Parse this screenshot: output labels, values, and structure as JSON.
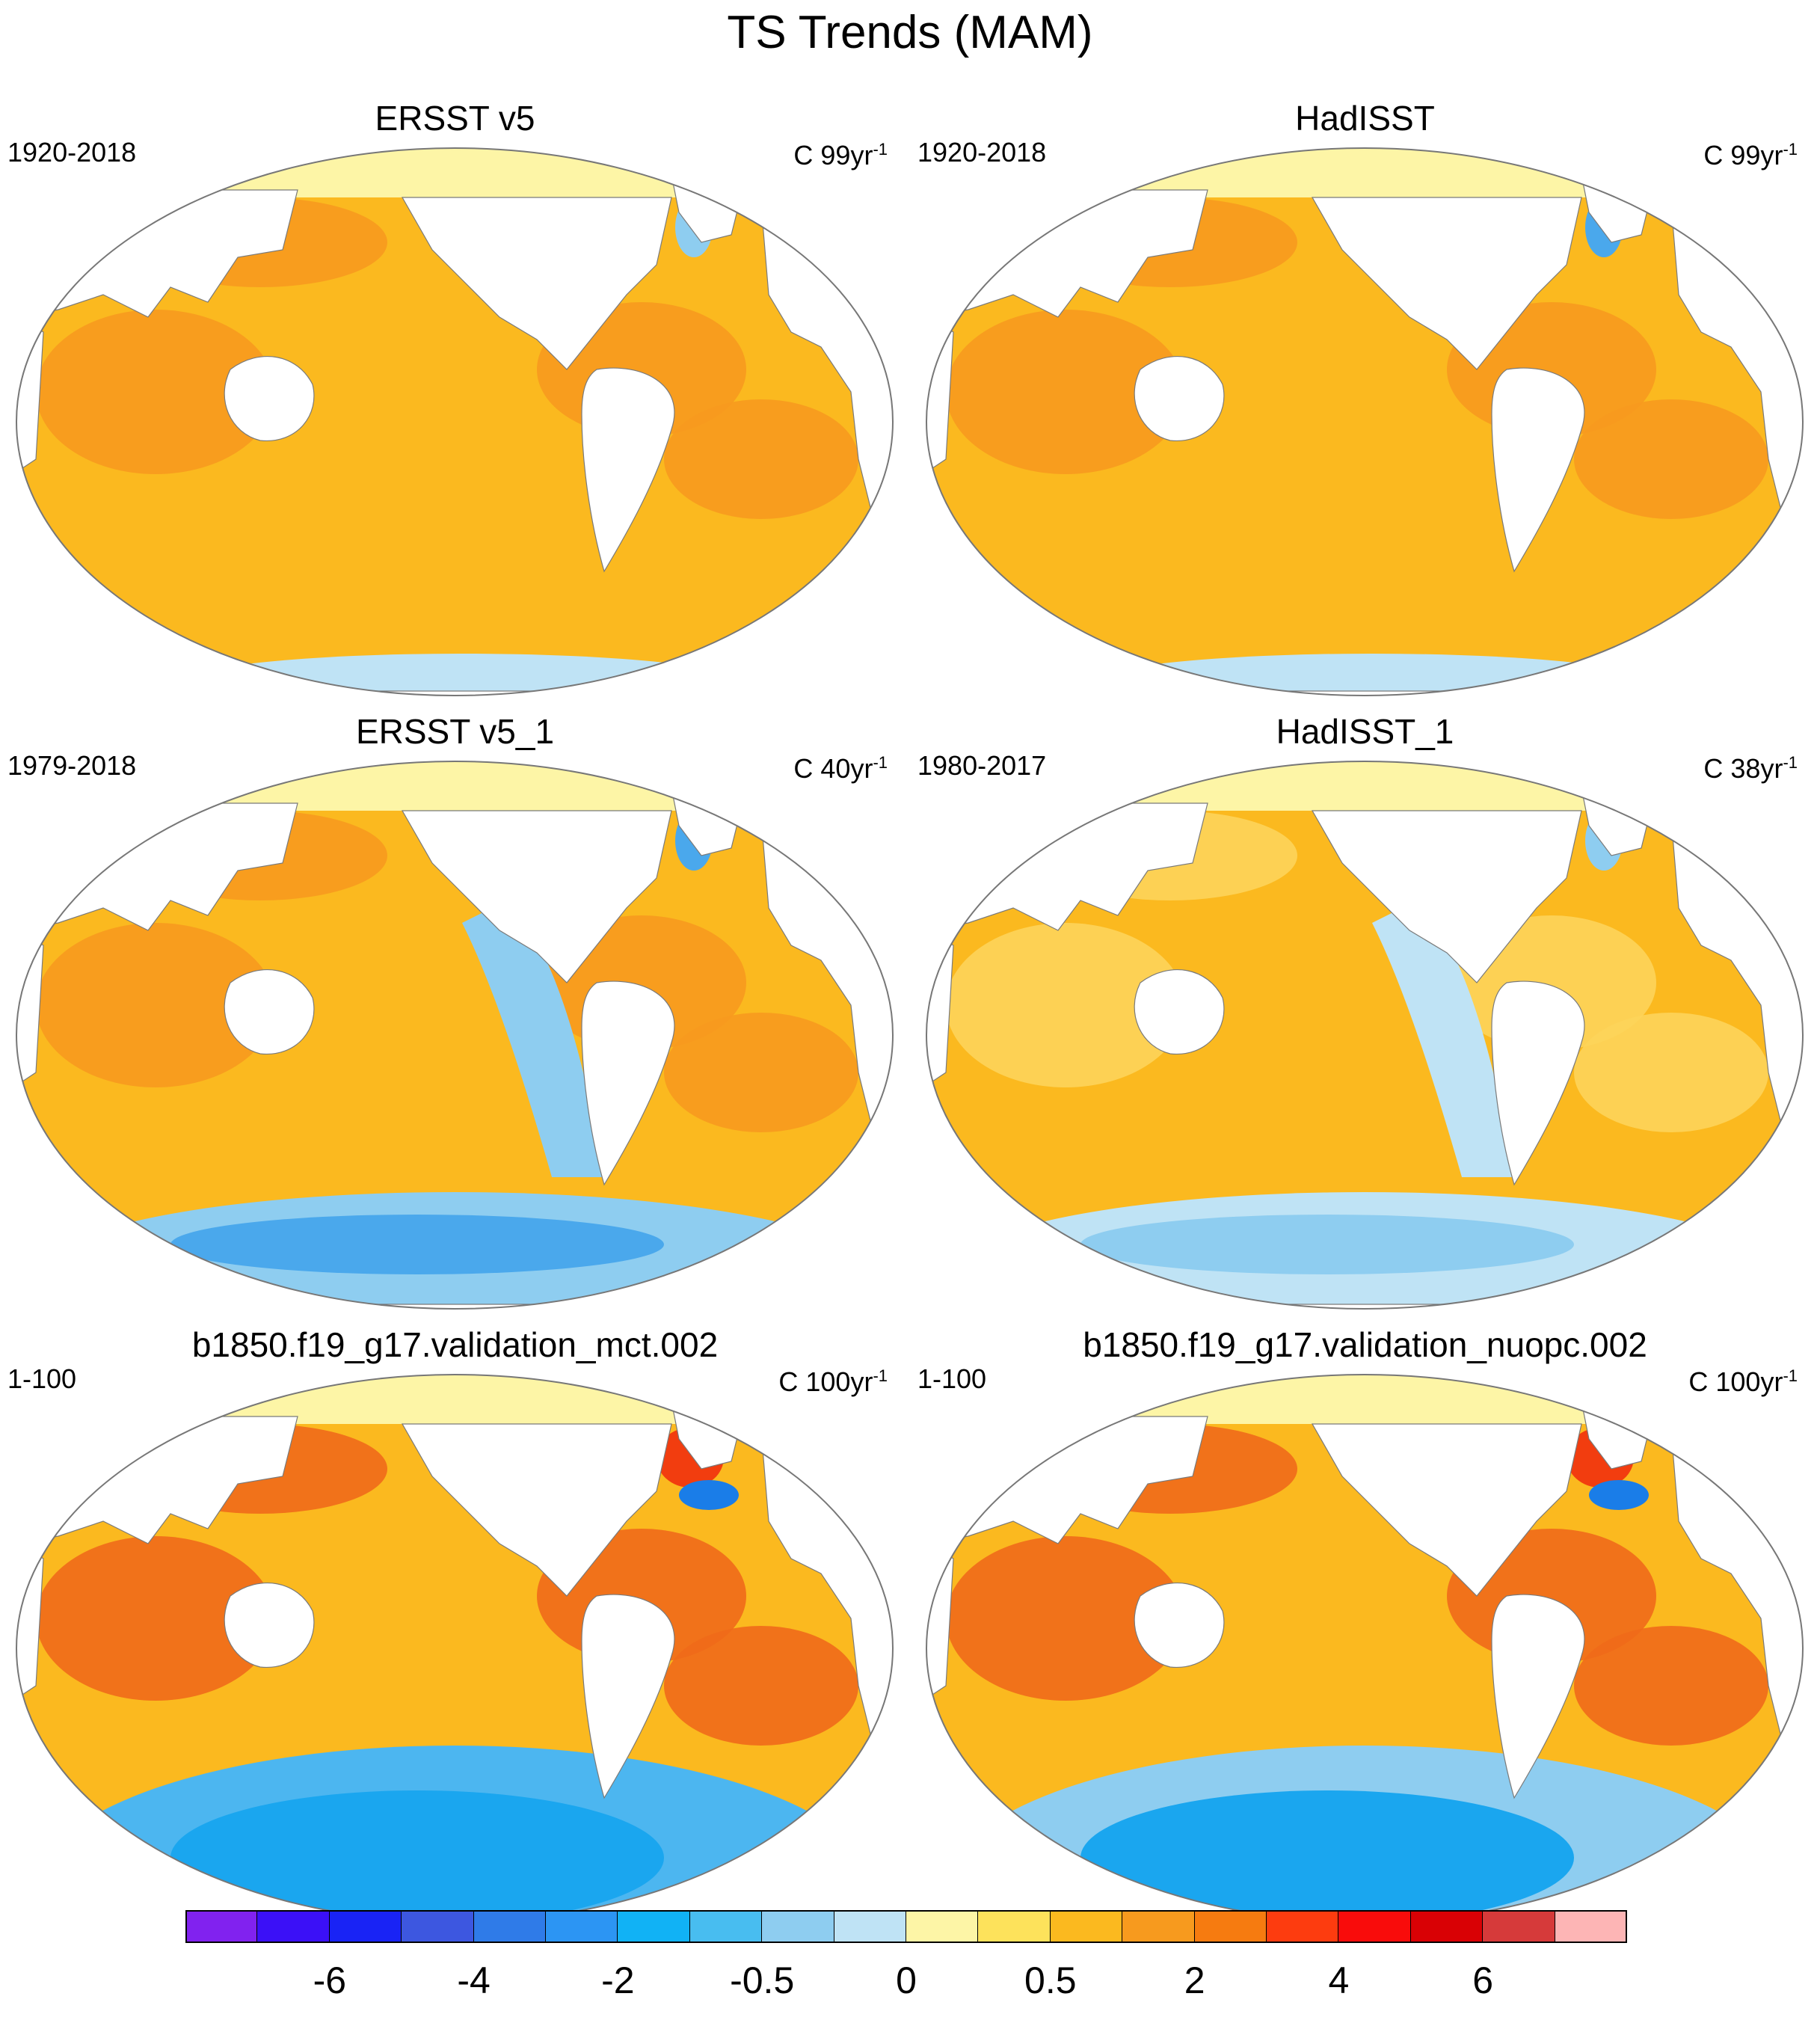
{
  "figure": {
    "title": "TS Trends (MAM)"
  },
  "panels": [
    {
      "id": "p1",
      "title": "ERSST v5",
      "period": "1920-2018",
      "units": "C 99yr",
      "units_exp": "-1",
      "warm": "#fbb91f",
      "warm2": "#f79a1e",
      "cool": "#bfe3f5",
      "cool2": "#8ecdf0"
    },
    {
      "id": "p2",
      "title": "HadISST",
      "period": "1920-2018",
      "units": "C 99yr",
      "units_exp": "-1",
      "warm": "#fbb91f",
      "warm2": "#f79a1e",
      "cool": "#bfe3f5",
      "cool2": "#4aa8ec"
    },
    {
      "id": "p3",
      "title": "ERSST v5_1",
      "period": "1979-2018",
      "units": "C 40yr",
      "units_exp": "-1",
      "warm": "#fbb91f",
      "warm2": "#f79a1e",
      "cool": "#8ecdf0",
      "cool2": "#4aa8ec"
    },
    {
      "id": "p4",
      "title": "HadISST_1",
      "period": "1980-2017",
      "units": "C 38yr",
      "units_exp": "-1",
      "warm": "#fbb91f",
      "warm2": "#fdd45a",
      "cool": "#bfe3f5",
      "cool2": "#8ecdf0"
    },
    {
      "id": "p5",
      "title": "b1850.f19_g17.validation_mct.002",
      "period": "1-100",
      "units": "C 100yr",
      "units_exp": "-1",
      "warm": "#fbb91f",
      "warm2": "#f06a19",
      "cool": "#4cb6f0",
      "cool2": "#1aa6ef"
    },
    {
      "id": "p6",
      "title": "b1850.f19_g17.validation_nuopc.002",
      "period": "1-100",
      "units": "C 100yr",
      "units_exp": "-1",
      "warm": "#fbb91f",
      "warm2": "#f06a19",
      "cool": "#8ecdf0",
      "cool2": "#1aa6ef"
    }
  ],
  "colorbar": {
    "colors": [
      "#8122ef",
      "#3b10f7",
      "#1923f5",
      "#3d57e0",
      "#2f7be8",
      "#2c95f3",
      "#11b2f5",
      "#48bdf0",
      "#8ecdf0",
      "#bfe3f5",
      "#fdf5a6",
      "#fde25b",
      "#fbb91f",
      "#f79a1e",
      "#f67b10",
      "#fd3c0f",
      "#f90c0b",
      "#d90105",
      "#d63a3a",
      "#fdb5b5"
    ],
    "labels": [
      "-6",
      "-4",
      "-2",
      "-0.5",
      "0",
      "0.5",
      "2",
      "4",
      "6"
    ]
  }
}
